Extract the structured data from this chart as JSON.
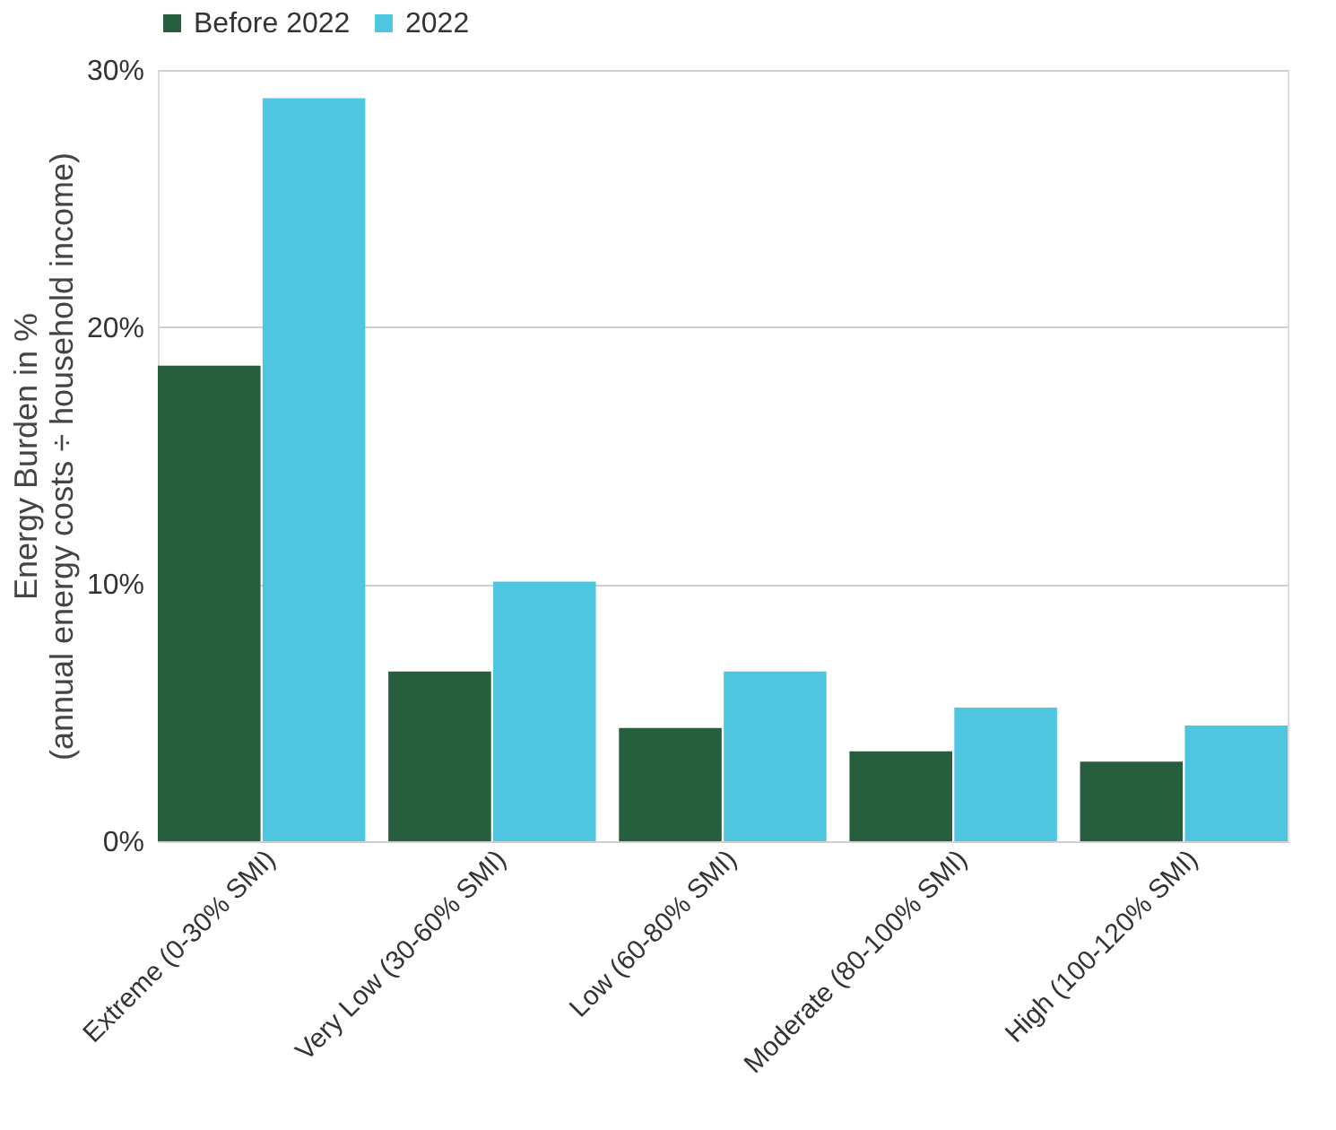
{
  "chart_data": {
    "type": "bar",
    "ylabel": "Energy Burden in %\n(annual energy costs ÷ household income)",
    "categories": [
      "Extreme (0-30% SMI)",
      "Very Low (30-60% SMI)",
      "Low (60-80% SMI)",
      "Moderate (80-100% SMI)",
      "High (100-120% SMI)"
    ],
    "series": [
      {
        "name": "Before 2022",
        "color": "#265e3e",
        "values": [
          18.5,
          6.6,
          4.4,
          3.5,
          3.1
        ]
      },
      {
        "name": "2022",
        "color": "#4fc6df",
        "values": [
          28.9,
          10.1,
          6.6,
          5.2,
          4.5
        ]
      }
    ],
    "ylim": [
      0,
      30
    ],
    "yticks": [
      {
        "value": 0,
        "label": "0%"
      },
      {
        "value": 10,
        "label": "10%"
      },
      {
        "value": 20,
        "label": "20%"
      },
      {
        "value": 30,
        "label": "30%"
      }
    ],
    "grid": "y",
    "legend": "top"
  }
}
